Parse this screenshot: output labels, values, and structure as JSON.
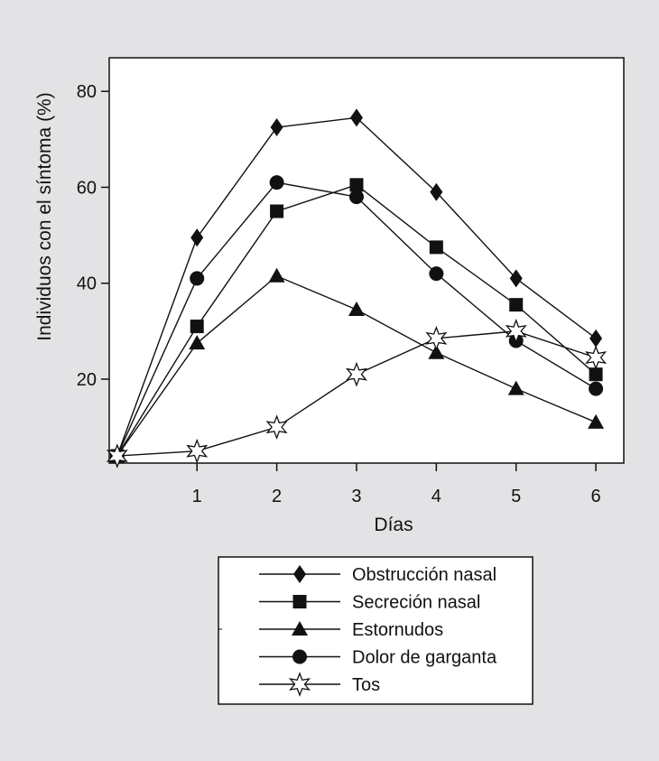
{
  "chart_data": {
    "type": "line",
    "xlabel": "Días",
    "ylabel": "Individuos con el síntoma (%)",
    "x": [
      0,
      1,
      2,
      3,
      4,
      5,
      6
    ],
    "x_tick_labels": [
      "1",
      "2",
      "3",
      "4",
      "5",
      "6"
    ],
    "y_tick_labels": [
      "20",
      "40",
      "60",
      "80"
    ],
    "xlim": [
      -0.1,
      6.35
    ],
    "ylim": [
      2.5,
      87
    ],
    "grid": false,
    "legend_position": "bottom",
    "series": [
      {
        "name": "Obstrucción nasal",
        "marker": "diamond",
        "values": [
          4,
          49.5,
          72.5,
          74.5,
          59,
          41,
          28.5
        ]
      },
      {
        "name": "Secreción nasal",
        "marker": "square",
        "values": [
          4,
          31,
          55,
          60.5,
          47.5,
          35.5,
          21
        ]
      },
      {
        "name": "Estornudos",
        "marker": "triangle",
        "values": [
          4,
          27.5,
          41.5,
          34.5,
          25.5,
          18,
          11
        ]
      },
      {
        "name": "Dolor de garganta",
        "marker": "circle",
        "values": [
          4,
          41,
          61,
          58,
          42,
          28,
          18
        ]
      },
      {
        "name": "Tos",
        "marker": "star",
        "values": [
          4,
          5,
          10,
          21,
          28.5,
          30,
          24.5
        ]
      }
    ],
    "colors": {
      "line": "#111111",
      "marker_fill": "#111111",
      "star_fill": "#ffffff",
      "plot_bg": "#ffffff",
      "page_bg": "#e3e3e5"
    }
  }
}
